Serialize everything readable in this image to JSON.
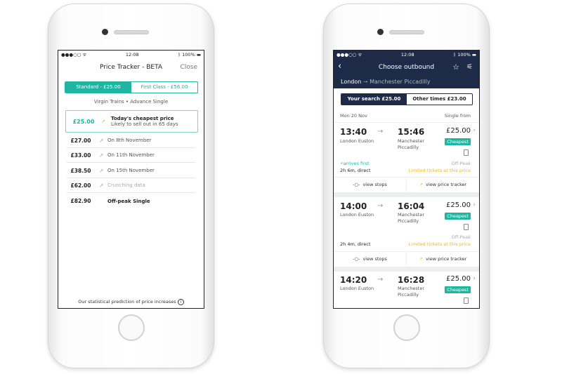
{
  "colors": {
    "accent": "#1fb5a0",
    "navy": "#1d2a48",
    "warning": "#e8b830"
  },
  "status": {
    "time": "12:08",
    "battery": "100%"
  },
  "left": {
    "title": "Price Tracker - BETA",
    "close": "Close",
    "tabs": [
      "Standard - £25.00",
      "First Class - £56.00"
    ],
    "subtitle": "Virgin Trains • Advance Single",
    "highlight": {
      "price": "£25.00",
      "title": "Today's cheapest price",
      "sub": "Likely to sell out in 65 days"
    },
    "rows": [
      {
        "price": "£27.00",
        "label": "On 8th November"
      },
      {
        "price": "£33.00",
        "label": "On 11th November"
      },
      {
        "price": "£38.50",
        "label": "On 15th November"
      },
      {
        "price": "£62.00",
        "label": "Crunching data"
      },
      {
        "price": "£82.90",
        "label": "Off-peak Single"
      }
    ],
    "footer": "Our statistical prediction of price increases"
  },
  "right": {
    "title": "Choose outbound",
    "from": "London",
    "to": "Manchester Piccadilly",
    "tabs": [
      "Your search £25.00",
      "Other times £23.00"
    ],
    "date": "Mon 20 Nov",
    "single_from": "Single from",
    "journeys": [
      {
        "dep": "13:40",
        "arr": "15:46",
        "origin": "London Euston",
        "dest1": "Manchester",
        "dest2": "Piccadilly",
        "price": "£25.00",
        "badge": "Cheapest",
        "arrives_first": "arrives first",
        "duration": "2h 6m, direct",
        "fare": "Off-Peak",
        "notice": "Limited tickets at this price"
      },
      {
        "dep": "14:00",
        "arr": "16:04",
        "origin": "London Euston",
        "dest1": "Manchester",
        "dest2": "Piccadilly",
        "price": "£25.00",
        "badge": "Cheapest",
        "duration": "2h 4m, direct",
        "fare": "Off-Peak",
        "notice": "Limited tickets at this price"
      },
      {
        "dep": "14:20",
        "arr": "16:28",
        "origin": "London Euston",
        "dest1": "Manchester",
        "dest2": "Piccadilly",
        "price": "£25.00",
        "badge": "Cheapest"
      }
    ],
    "view_stops": "view stops",
    "view_tracker": "view price tracker"
  }
}
